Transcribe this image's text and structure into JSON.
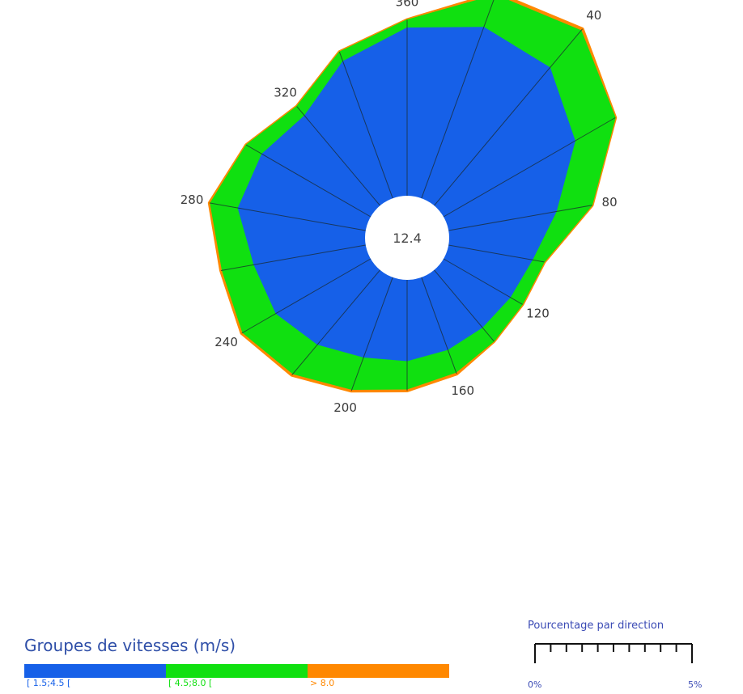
{
  "chart_data": {
    "type": "windrose",
    "calm_value": "12.4",
    "directions": [
      0,
      20,
      40,
      60,
      80,
      100,
      120,
      140,
      160,
      180,
      200,
      220,
      240,
      260,
      280,
      300,
      320,
      340
    ],
    "direction_labels": [
      "360",
      "40",
      "80",
      "120",
      "160",
      "200",
      "240",
      "280",
      "320"
    ],
    "unit": "%",
    "scale": {
      "title": "Pourcentage par direction",
      "min_label": "0%",
      "max_label": "5%",
      "min": 0,
      "max": 5
    },
    "speed_groups_title": "Groupes de vitesses (m/s)",
    "series": [
      {
        "name": "[ 1.5;4.5 [",
        "color": "#1660e8",
        "values": [
          4.15,
          4.5,
          4.45,
          3.75,
          2.7,
          2.1,
          1.9,
          1.85,
          1.9,
          2.0,
          2.1,
          2.4,
          2.7,
          2.8,
          3.2,
          3.1,
          2.9,
          3.6
        ]
      },
      {
        "name": "[ 4.5;8.0 [",
        "color": "#10e010",
        "values": [
          0.2,
          0.85,
          1.2,
          1.15,
          0.9,
          0.3,
          0.35,
          0.45,
          0.6,
          0.7,
          0.85,
          0.95,
          0.95,
          0.8,
          0.7,
          0.45,
          0.3,
          0.25
        ]
      },
      {
        "name": "> 8.0",
        "color": "#ff8800",
        "values": [
          0.0,
          0.05,
          0.05,
          0.0,
          0.0,
          0.0,
          0.0,
          0.0,
          0.04,
          0.04,
          0.04,
          0.04,
          0.03,
          0.03,
          0.02,
          0.0,
          0.0,
          0.0
        ]
      }
    ]
  }
}
